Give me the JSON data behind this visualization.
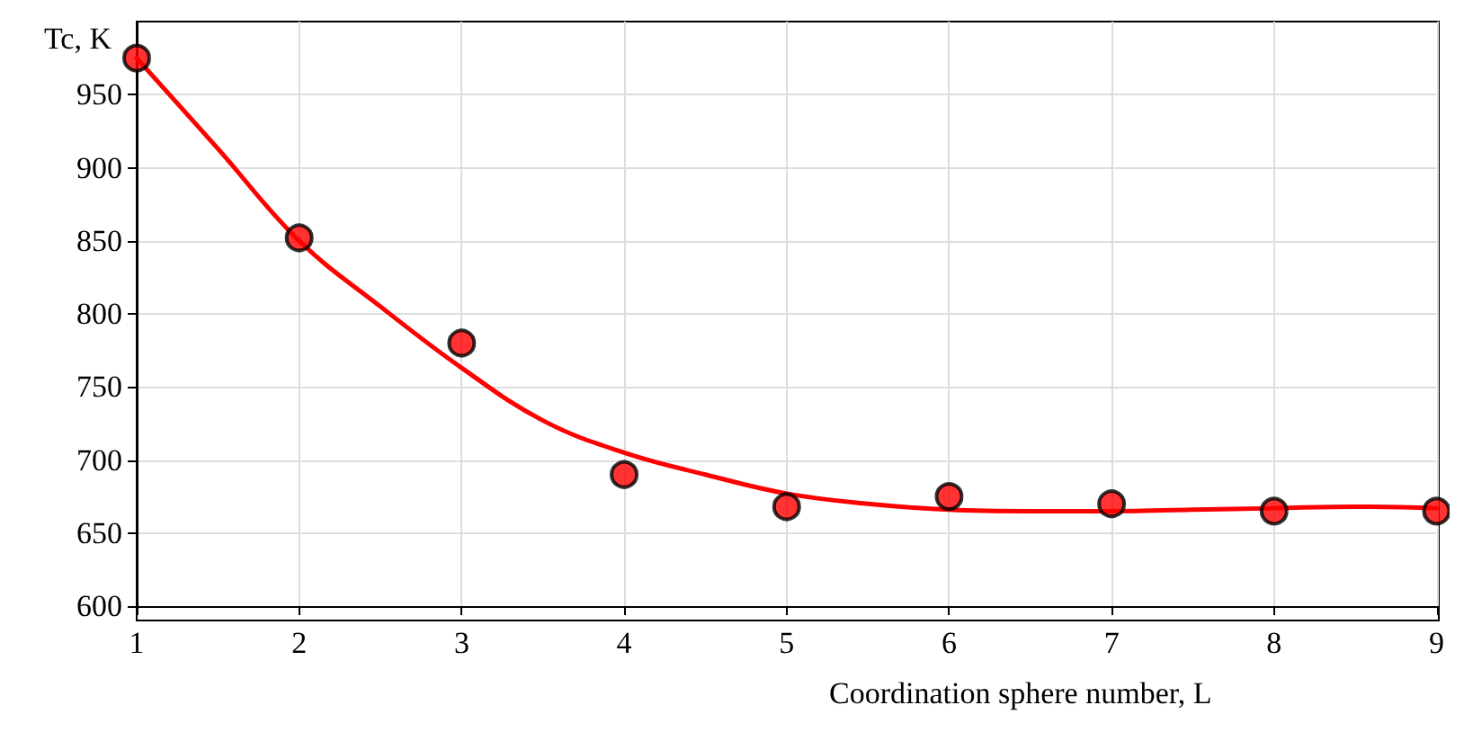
{
  "chart_data": {
    "type": "scatter",
    "xlabel": "Coordination sphere number, L",
    "ylabel": "Tc, K",
    "xlim": [
      1,
      9
    ],
    "xticks": [
      1,
      2,
      3,
      4,
      5,
      6,
      7,
      8,
      9
    ],
    "ylim": [
      600,
      1000
    ],
    "yticks": [
      600,
      650,
      700,
      750,
      800,
      850,
      900,
      950
    ],
    "grid": true,
    "marker": "circle",
    "series": [
      {
        "type": "line",
        "color": "#ff0000",
        "marker": "none",
        "line_style": "solid",
        "x": [
          1,
          1.5,
          2,
          2.5,
          3,
          3.5,
          4,
          4.5,
          5,
          5.5,
          6,
          6.5,
          7,
          7.5,
          8,
          8.5,
          9
        ],
        "values": [
          975,
          913,
          850,
          805,
          763,
          727,
          705,
          690,
          677,
          670,
          666,
          665,
          665,
          666,
          667,
          668,
          667
        ]
      },
      {
        "color": "#ff0000",
        "x": [
          1,
          2,
          3,
          4,
          5,
          6,
          7,
          8,
          9
        ],
        "values": [
          975,
          852,
          780,
          690,
          668,
          675,
          670,
          665,
          665
        ]
      }
    ]
  }
}
